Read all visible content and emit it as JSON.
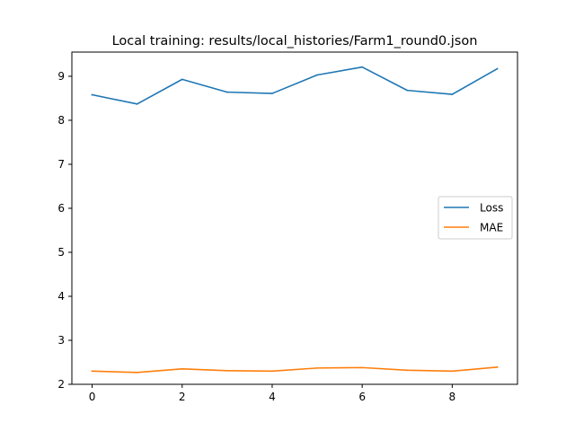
{
  "chart_data": {
    "type": "line",
    "title": "Local training: results/local_histories/Farm1_round0.json",
    "xlabel": "",
    "ylabel": "",
    "x": [
      0,
      1,
      2,
      3,
      4,
      5,
      6,
      7,
      8,
      9
    ],
    "xlim": [
      -0.45,
      9.45
    ],
    "ylim": [
      2.0,
      9.55
    ],
    "xticks": [
      0,
      2,
      4,
      6,
      8
    ],
    "yticks": [
      2,
      3,
      4,
      5,
      6,
      7,
      8,
      9
    ],
    "xtick_labels": [
      "0",
      "2",
      "4",
      "6",
      "8"
    ],
    "ytick_labels": [
      "2",
      "3",
      "4",
      "5",
      "6",
      "7",
      "8",
      "9"
    ],
    "grid": false,
    "legend": "center-right",
    "series": [
      {
        "name": "Loss",
        "color": "#1f77b4",
        "values": [
          8.58,
          8.37,
          8.93,
          8.64,
          8.61,
          9.03,
          9.21,
          8.68,
          8.59,
          9.17
        ]
      },
      {
        "name": "MAE",
        "color": "#ff7f0e",
        "values": [
          2.3,
          2.27,
          2.35,
          2.31,
          2.3,
          2.37,
          2.38,
          2.32,
          2.3,
          2.39
        ]
      }
    ]
  }
}
